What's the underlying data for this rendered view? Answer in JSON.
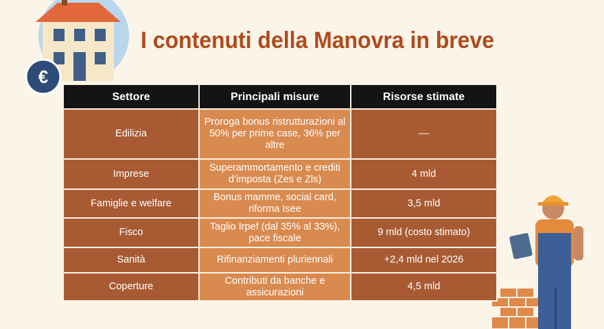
{
  "header": {
    "title": "I contenuti della Manovra in breve",
    "badge": "€"
  },
  "table": {
    "headers": [
      "Settore",
      "Principali misure",
      "Risorse stimate"
    ],
    "rows": [
      [
        "Edilizia",
        "Proroga bonus ristrutturazioni al 50% per prime case, 36% per altre",
        "—"
      ],
      [
        "Imprese",
        "Superammortamento e crediti d’imposta (Zes e Zls)",
        "4 mld"
      ],
      [
        "Famiglie e welfare",
        "Bonus mamme, social card, riforma Isee",
        "3,5 mld"
      ],
      [
        "Fisco",
        "Taglio Irpef (dal 35% al 33%), pace fiscale",
        "9 mld (costo stimato)"
      ],
      [
        "Sanità",
        "Rifinanziamenti pluriennali",
        "+2,4 mld nel 2026"
      ],
      [
        "Coperture",
        "Contributi da banche e assicurazioni",
        "4,5 mld"
      ]
    ]
  }
}
